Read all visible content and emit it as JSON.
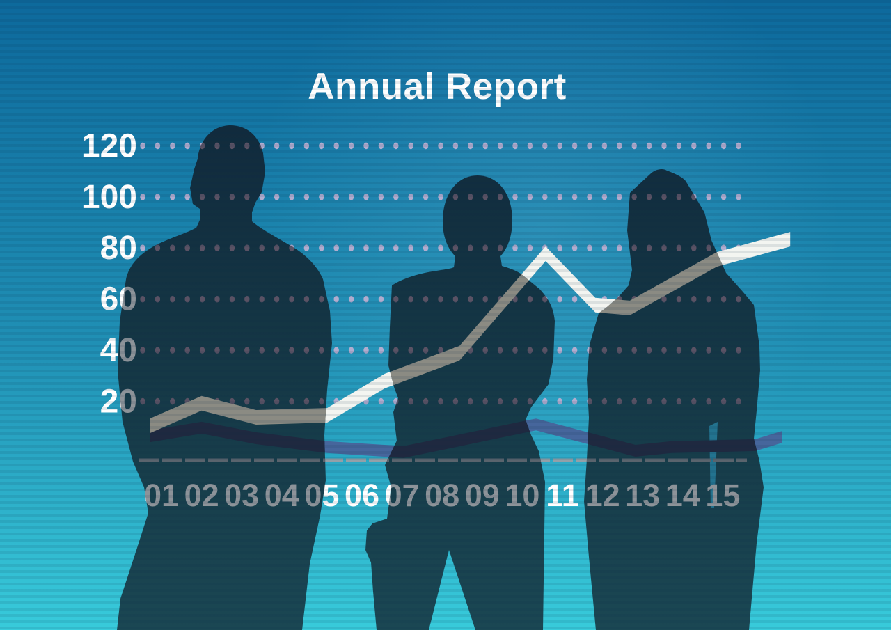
{
  "title": "Annual Report",
  "chart_data": {
    "type": "line",
    "title": "Annual Report",
    "categories": [
      "01",
      "02",
      "03",
      "04",
      "05",
      "06",
      "07",
      "08",
      "09",
      "10",
      "11",
      "12",
      "13",
      "14",
      "15"
    ],
    "y_tick_labels": [
      "120",
      "100",
      "80",
      "60",
      "40",
      "20"
    ],
    "y_ticks": [
      120,
      100,
      80,
      60,
      40,
      20
    ],
    "ylim": [
      0,
      130
    ],
    "grid": "dotted-horizontal-rows",
    "legend": "none",
    "series": [
      {
        "name": "primary-highlight-line",
        "values": [
          16,
          22,
          18,
          17,
          17,
          26,
          34,
          40,
          53,
          71,
          73,
          60,
          63,
          72,
          79
        ]
      },
      {
        "name": "secondary-dark-line",
        "values": [
          10,
          12,
          9,
          6,
          4,
          3,
          3,
          6,
          9,
          12,
          10,
          6,
          3,
          4,
          5
        ]
      }
    ],
    "plot_vertices": {
      "series1": [
        [
          0.71,
          13.3
        ],
        [
          2.0,
          22.1
        ],
        [
          3.36,
          16.6
        ],
        [
          5.13,
          17.4
        ],
        [
          6.57,
          30.8
        ],
        [
          8.43,
          41.7
        ],
        [
          10.58,
          80.6
        ],
        [
          11.82,
          60.5
        ],
        [
          12.68,
          59.4
        ],
        [
          14.85,
          78.4
        ],
        [
          16.68,
          86.3
        ]
      ],
      "series2": [
        [
          0.71,
          8.7
        ],
        [
          2.0,
          12.0
        ],
        [
          3.36,
          7.9
        ],
        [
          5.13,
          4.4
        ],
        [
          7.04,
          2.5
        ],
        [
          10.34,
          13.3
        ],
        [
          12.82,
          3.0
        ],
        [
          13.72,
          4.4
        ],
        [
          15.81,
          5.2
        ],
        [
          16.47,
          8.4
        ]
      ]
    }
  },
  "colors": {
    "series1_bright": "#f3f5f1",
    "series1_dim": "#8b8b83",
    "series2_bright": "#46669c",
    "series2_dim": "#1f2940",
    "dots_bright": "#b1adcf",
    "dots_dim": "#5a5264",
    "axis_bright": "#93a0a8",
    "axis_dim": "#5a646d",
    "label_bright": "#ffffff",
    "label_dim": "#8d9399",
    "title_color": "#ffffff",
    "background_top": "#0d699c",
    "background_mid": "#2090b5",
    "background_bottom": "#38cbdb",
    "silhouette_top": "#112a3c",
    "silhouette_bottom": "#1a4853"
  }
}
